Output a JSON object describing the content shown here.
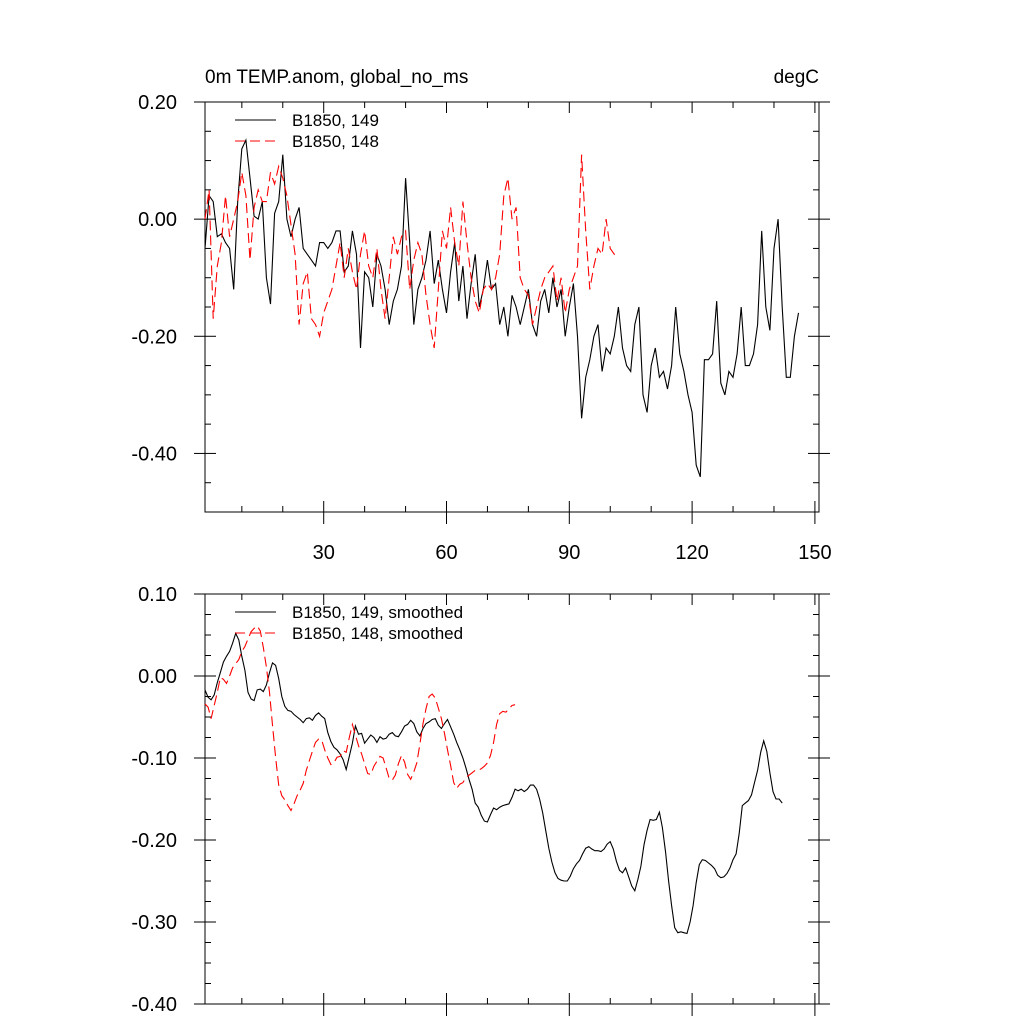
{
  "chart_data": [
    {
      "type": "line",
      "title_left": "0m TEMP.anom, global_no_ms",
      "title_right": "degC",
      "xlim": [
        1,
        151
      ],
      "ylim": [
        -0.5,
        0.2
      ],
      "x_ticks": [
        "30",
        "60",
        "90",
        "120",
        "150"
      ],
      "y_ticks": [
        "0.20",
        "0.00",
        "-0.20",
        "-0.40"
      ],
      "legend_position": "top-left",
      "series": [
        {
          "name": "B1850, 149",
          "color": "#000000",
          "dash": "solid",
          "values": [
            -0.05,
            0.04,
            0.03,
            -0.03,
            -0.025,
            -0.04,
            -0.05,
            -0.12,
            0.03,
            0.12,
            0.135,
            0.07,
            0.005,
            0.0,
            0.03,
            -0.1,
            -0.145,
            0.01,
            0.03,
            0.11,
            0.0,
            -0.03,
            0.0,
            0.02,
            -0.05,
            -0.06,
            -0.07,
            -0.08,
            -0.04,
            -0.04,
            -0.05,
            -0.04,
            -0.02,
            -0.02,
            -0.09,
            -0.08,
            -0.02,
            -0.06,
            -0.22,
            -0.09,
            -0.1,
            -0.15,
            -0.06,
            -0.08,
            -0.12,
            -0.18,
            -0.14,
            -0.12,
            -0.08,
            0.07,
            -0.04,
            -0.18,
            -0.12,
            -0.1,
            -0.07,
            -0.02,
            -0.11,
            -0.07,
            -0.12,
            -0.16,
            -0.09,
            -0.04,
            -0.14,
            -0.08,
            -0.17,
            -0.11,
            -0.06,
            -0.15,
            -0.12,
            -0.07,
            -0.12,
            -0.11,
            -0.18,
            -0.15,
            -0.2,
            -0.13,
            -0.15,
            -0.18,
            -0.15,
            -0.12,
            -0.18,
            -0.2,
            -0.14,
            -0.12,
            -0.16,
            -0.1,
            -0.15,
            -0.12,
            -0.2,
            -0.15,
            -0.11,
            -0.2,
            -0.34,
            -0.27,
            -0.24,
            -0.2,
            -0.18,
            -0.26,
            -0.22,
            -0.23,
            -0.2,
            -0.15,
            -0.22,
            -0.25,
            -0.26,
            -0.18,
            -0.15,
            -0.3,
            -0.33,
            -0.25,
            -0.22,
            -0.27,
            -0.26,
            -0.29,
            -0.25,
            -0.15,
            -0.23,
            -0.26,
            -0.3,
            -0.33,
            -0.42,
            -0.44,
            -0.24,
            -0.24,
            -0.23,
            -0.14,
            -0.28,
            -0.3,
            -0.26,
            -0.27,
            -0.23,
            -0.15,
            -0.25,
            -0.25,
            -0.23,
            -0.18,
            -0.02,
            -0.15,
            -0.19,
            -0.05,
            0.0,
            -0.15,
            -0.27,
            -0.27,
            -0.2,
            -0.16
          ]
        },
        {
          "name": "B1850, 148",
          "color": "#ff0000",
          "dash": "dashed",
          "values": [
            0.0,
            0.05,
            -0.17,
            -0.08,
            -0.04,
            0.04,
            -0.03,
            0.0,
            0.03,
            0.08,
            0.04,
            -0.07,
            0.02,
            0.05,
            0.03,
            0.03,
            0.08,
            0.06,
            0.09,
            0.07,
            0.04,
            -0.01,
            -0.06,
            -0.18,
            -0.11,
            -0.09,
            -0.17,
            -0.18,
            -0.2,
            -0.16,
            -0.14,
            -0.12,
            -0.08,
            -0.04,
            -0.1,
            -0.05,
            -0.09,
            -0.12,
            -0.06,
            -0.02,
            -0.08,
            -0.1,
            -0.05,
            -0.12,
            -0.17,
            -0.1,
            -0.03,
            -0.06,
            -0.03,
            -0.02,
            -0.12,
            -0.07,
            -0.04,
            -0.06,
            -0.13,
            -0.18,
            -0.22,
            -0.12,
            -0.02,
            -0.05,
            0.02,
            -0.04,
            -0.08,
            0.03,
            -0.04,
            -0.1,
            -0.14,
            -0.16,
            -0.12,
            -0.11,
            -0.12,
            -0.1,
            -0.06,
            0.04,
            0.07,
            0.0,
            0.02,
            -0.1,
            -0.12,
            -0.13,
            -0.18,
            -0.15,
            -0.12,
            -0.1,
            -0.09,
            -0.08,
            -0.14,
            -0.1,
            -0.16,
            -0.12,
            -0.1,
            -0.08,
            0.11,
            -0.02,
            -0.12,
            -0.08,
            -0.05,
            -0.06,
            0.0,
            -0.05,
            -0.06,
            -0.06
          ]
        }
      ]
    },
    {
      "type": "line",
      "xlim": [
        1,
        151
      ],
      "ylim": [
        -0.4,
        0.1
      ],
      "y_ticks": [
        "0.10",
        "0.00",
        "-0.10",
        "-0.20",
        "-0.30",
        "-0.40"
      ],
      "legend_position": "top-left",
      "series": [
        {
          "name": "B1850, 149, smoothed",
          "color": "#000000",
          "dash": "solid",
          "values": [
            -0.017,
            -0.026,
            -0.029,
            -0.023,
            -0.008,
            0.004,
            0.017,
            0.024,
            0.03,
            0.04,
            0.052,
            0.044,
            0.024,
            0.007,
            -0.02,
            -0.028,
            -0.03,
            -0.017,
            -0.016,
            -0.019,
            -0.011,
            0.004,
            0.016,
            0.013,
            -0.003,
            -0.025,
            -0.037,
            -0.042,
            -0.043,
            -0.047,
            -0.05,
            -0.053,
            -0.057,
            -0.052,
            -0.051,
            -0.054,
            -0.048,
            -0.045,
            -0.049,
            -0.052,
            -0.069,
            -0.08,
            -0.087,
            -0.09,
            -0.095,
            -0.102,
            -0.114,
            -0.098,
            -0.082,
            -0.061,
            -0.071,
            -0.07,
            -0.082,
            -0.077,
            -0.072,
            -0.075,
            -0.081,
            -0.074,
            -0.077,
            -0.076,
            -0.071,
            -0.069,
            -0.073,
            -0.074,
            -0.068,
            -0.061,
            -0.059,
            -0.054,
            -0.058,
            -0.068,
            -0.073,
            -0.064,
            -0.058,
            -0.056,
            -0.053,
            -0.052,
            -0.06,
            -0.064,
            -0.058,
            -0.053,
            -0.062,
            -0.071,
            -0.081,
            -0.09,
            -0.1,
            -0.112,
            -0.126,
            -0.138,
            -0.155,
            -0.16,
            -0.17,
            -0.177,
            -0.178,
            -0.169,
            -0.161,
            -0.163,
            -0.16,
            -0.158,
            -0.157,
            -0.156,
            -0.148,
            -0.138,
            -0.14,
            -0.138,
            -0.141,
            -0.138,
            -0.133,
            -0.133,
            -0.138,
            -0.15,
            -0.167,
            -0.189,
            -0.21,
            -0.227,
            -0.24,
            -0.247,
            -0.249,
            -0.25,
            -0.25,
            -0.244,
            -0.235,
            -0.229,
            -0.225,
            -0.217,
            -0.21,
            -0.208,
            -0.211,
            -0.213,
            -0.213,
            -0.214,
            -0.211,
            -0.205,
            -0.202,
            -0.211,
            -0.226,
            -0.237,
            -0.24,
            -0.234,
            -0.245,
            -0.256,
            -0.262,
            -0.248,
            -0.232,
            -0.206,
            -0.188,
            -0.175,
            -0.176,
            -0.175,
            -0.166,
            -0.185,
            -0.214,
            -0.25,
            -0.28,
            -0.307,
            -0.313,
            -0.312,
            -0.313,
            -0.314,
            -0.3,
            -0.28,
            -0.252,
            -0.23,
            -0.224,
            -0.225,
            -0.228,
            -0.231,
            -0.235,
            -0.243,
            -0.246,
            -0.245,
            -0.241,
            -0.234,
            -0.224,
            -0.217,
            -0.192,
            -0.158,
            -0.155,
            -0.152,
            -0.145,
            -0.13,
            -0.115,
            -0.093,
            -0.079,
            -0.092,
            -0.118,
            -0.141,
            -0.15,
            -0.15,
            -0.155
          ]
        },
        {
          "name": "B1850, 148, smoothed",
          "color": "#ff0000",
          "dash": "dashed",
          "values": [
            -0.034,
            -0.038,
            -0.052,
            -0.036,
            -0.02,
            -0.002,
            -0.004,
            -0.009,
            0.0,
            0.01,
            0.015,
            0.02,
            0.03,
            0.036,
            0.045,
            0.054,
            0.058,
            0.061,
            0.055,
            0.035,
            0.011,
            -0.02,
            -0.06,
            -0.099,
            -0.133,
            -0.146,
            -0.151,
            -0.158,
            -0.164,
            -0.156,
            -0.146,
            -0.139,
            -0.131,
            -0.115,
            -0.103,
            -0.092,
            -0.081,
            -0.077,
            -0.078,
            -0.09,
            -0.1,
            -0.108,
            -0.106,
            -0.099,
            -0.098,
            -0.091,
            -0.093,
            -0.075,
            -0.059,
            -0.072,
            -0.085,
            -0.095,
            -0.107,
            -0.119,
            -0.12,
            -0.11,
            -0.104,
            -0.098,
            -0.1,
            -0.112,
            -0.125,
            -0.127,
            -0.121,
            -0.107,
            -0.097,
            -0.105,
            -0.12,
            -0.126,
            -0.117,
            -0.106,
            -0.083,
            -0.058,
            -0.04,
            -0.025,
            -0.022,
            -0.027,
            -0.039,
            -0.052,
            -0.07,
            -0.09,
            -0.109,
            -0.13,
            -0.137,
            -0.132,
            -0.13,
            -0.124,
            -0.121,
            -0.118,
            -0.115,
            -0.115,
            -0.113,
            -0.11,
            -0.106,
            -0.097,
            -0.081,
            -0.059,
            -0.046,
            -0.043,
            -0.044,
            -0.04,
            -0.036,
            -0.035
          ]
        }
      ]
    }
  ]
}
